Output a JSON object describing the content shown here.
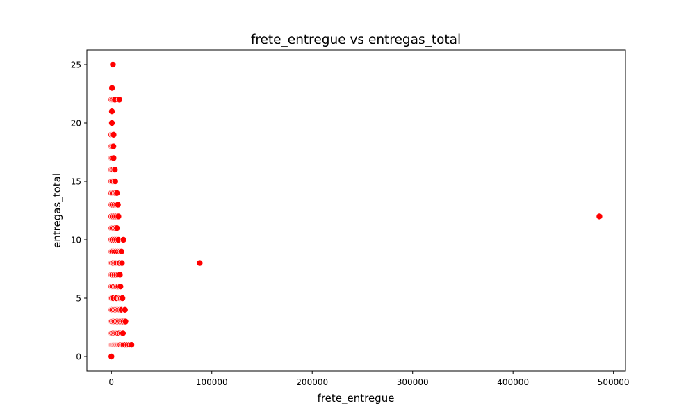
{
  "chart_data": {
    "type": "scatter",
    "title": "frete_entregue vs entregas_total",
    "xlabel": "frete_entregue",
    "ylabel": "entregas_total",
    "xlim": [
      -24400,
      512000
    ],
    "ylim": [
      -1.25,
      26.25
    ],
    "xticks": [
      0,
      100000,
      200000,
      300000,
      400000,
      500000
    ],
    "xtick_labels": [
      "0",
      "100000",
      "200000",
      "300000",
      "400000",
      "500000"
    ],
    "yticks": [
      0,
      5,
      10,
      15,
      20,
      25
    ],
    "ytick_labels": [
      "0",
      "5",
      "10",
      "15",
      "20",
      "25"
    ],
    "grid": false,
    "marker_color": "#ff0000",
    "marker_edge_color": "#ffffff",
    "points": [
      {
        "x": 0,
        "y": 0
      },
      {
        "x": 0,
        "y": 1
      },
      {
        "x": 600,
        "y": 1
      },
      {
        "x": 1400,
        "y": 1
      },
      {
        "x": 2200,
        "y": 1
      },
      {
        "x": 3100,
        "y": 1
      },
      {
        "x": 4000,
        "y": 1
      },
      {
        "x": 5000,
        "y": 1
      },
      {
        "x": 6000,
        "y": 1
      },
      {
        "x": 7000,
        "y": 1
      },
      {
        "x": 8000,
        "y": 1
      },
      {
        "x": 9000,
        "y": 1
      },
      {
        "x": 10500,
        "y": 1
      },
      {
        "x": 12000,
        "y": 1
      },
      {
        "x": 13500,
        "y": 1
      },
      {
        "x": 16000,
        "y": 1
      },
      {
        "x": 18000,
        "y": 1
      },
      {
        "x": 20000,
        "y": 1
      },
      {
        "x": 0,
        "y": 2
      },
      {
        "x": 800,
        "y": 2
      },
      {
        "x": 2000,
        "y": 2
      },
      {
        "x": 3500,
        "y": 2
      },
      {
        "x": 5000,
        "y": 2
      },
      {
        "x": 6500,
        "y": 2
      },
      {
        "x": 8000,
        "y": 2
      },
      {
        "x": 10000,
        "y": 2
      },
      {
        "x": 11500,
        "y": 2
      },
      {
        "x": 0,
        "y": 3
      },
      {
        "x": 700,
        "y": 3
      },
      {
        "x": 1800,
        "y": 3
      },
      {
        "x": 3000,
        "y": 3
      },
      {
        "x": 4500,
        "y": 3
      },
      {
        "x": 6000,
        "y": 3
      },
      {
        "x": 7500,
        "y": 3
      },
      {
        "x": 9000,
        "y": 3
      },
      {
        "x": 10500,
        "y": 3
      },
      {
        "x": 12000,
        "y": 3
      },
      {
        "x": 14000,
        "y": 3
      },
      {
        "x": 0,
        "y": 4
      },
      {
        "x": 900,
        "y": 4
      },
      {
        "x": 2500,
        "y": 4
      },
      {
        "x": 4000,
        "y": 4
      },
      {
        "x": 5500,
        "y": 4
      },
      {
        "x": 7000,
        "y": 4
      },
      {
        "x": 8500,
        "y": 4
      },
      {
        "x": 10000,
        "y": 4
      },
      {
        "x": 13500,
        "y": 4
      },
      {
        "x": 0,
        "y": 5
      },
      {
        "x": 700,
        "y": 5
      },
      {
        "x": 1800,
        "y": 5
      },
      {
        "x": 5000,
        "y": 5
      },
      {
        "x": 8000,
        "y": 5
      },
      {
        "x": 9500,
        "y": 5
      },
      {
        "x": 11000,
        "y": 5
      },
      {
        "x": 0,
        "y": 6
      },
      {
        "x": 1000,
        "y": 6
      },
      {
        "x": 2500,
        "y": 6
      },
      {
        "x": 4000,
        "y": 6
      },
      {
        "x": 5500,
        "y": 6
      },
      {
        "x": 7000,
        "y": 6
      },
      {
        "x": 9000,
        "y": 6
      },
      {
        "x": 0,
        "y": 7
      },
      {
        "x": 900,
        "y": 7
      },
      {
        "x": 3000,
        "y": 7
      },
      {
        "x": 5000,
        "y": 7
      },
      {
        "x": 7000,
        "y": 7
      },
      {
        "x": 8500,
        "y": 7
      },
      {
        "x": 0,
        "y": 8
      },
      {
        "x": 700,
        "y": 8
      },
      {
        "x": 1800,
        "y": 8
      },
      {
        "x": 3500,
        "y": 8
      },
      {
        "x": 5000,
        "y": 8
      },
      {
        "x": 6500,
        "y": 8
      },
      {
        "x": 8000,
        "y": 8
      },
      {
        "x": 10500,
        "y": 8
      },
      {
        "x": 88000,
        "y": 8
      },
      {
        "x": 0,
        "y": 9
      },
      {
        "x": 900,
        "y": 9
      },
      {
        "x": 2800,
        "y": 9
      },
      {
        "x": 4500,
        "y": 9
      },
      {
        "x": 6500,
        "y": 9
      },
      {
        "x": 8500,
        "y": 9
      },
      {
        "x": 10000,
        "y": 9
      },
      {
        "x": 0,
        "y": 10
      },
      {
        "x": 1000,
        "y": 10
      },
      {
        "x": 3000,
        "y": 10
      },
      {
        "x": 5000,
        "y": 10
      },
      {
        "x": 7000,
        "y": 10
      },
      {
        "x": 12000,
        "y": 10
      },
      {
        "x": 0,
        "y": 11
      },
      {
        "x": 1000,
        "y": 11
      },
      {
        "x": 2500,
        "y": 11
      },
      {
        "x": 4000,
        "y": 11
      },
      {
        "x": 5500,
        "y": 11
      },
      {
        "x": 0,
        "y": 12
      },
      {
        "x": 1200,
        "y": 12
      },
      {
        "x": 3000,
        "y": 12
      },
      {
        "x": 5000,
        "y": 12
      },
      {
        "x": 7000,
        "y": 12
      },
      {
        "x": 486000,
        "y": 12
      },
      {
        "x": 0,
        "y": 13
      },
      {
        "x": 1000,
        "y": 13
      },
      {
        "x": 3000,
        "y": 13
      },
      {
        "x": 5000,
        "y": 13
      },
      {
        "x": 6500,
        "y": 13
      },
      {
        "x": 0,
        "y": 14
      },
      {
        "x": 1200,
        "y": 14
      },
      {
        "x": 2500,
        "y": 14
      },
      {
        "x": 4000,
        "y": 14
      },
      {
        "x": 5500,
        "y": 14
      },
      {
        "x": 0,
        "y": 15
      },
      {
        "x": 1000,
        "y": 15
      },
      {
        "x": 2500,
        "y": 15
      },
      {
        "x": 3800,
        "y": 15
      },
      {
        "x": 0,
        "y": 16
      },
      {
        "x": 900,
        "y": 16
      },
      {
        "x": 2000,
        "y": 16
      },
      {
        "x": 3500,
        "y": 16
      },
      {
        "x": 0,
        "y": 17
      },
      {
        "x": 800,
        "y": 17
      },
      {
        "x": 2200,
        "y": 17
      },
      {
        "x": 0,
        "y": 18
      },
      {
        "x": 900,
        "y": 18
      },
      {
        "x": 2000,
        "y": 18
      },
      {
        "x": 0,
        "y": 19
      },
      {
        "x": 1200,
        "y": 19
      },
      {
        "x": 2200,
        "y": 19
      },
      {
        "x": 500,
        "y": 20
      },
      {
        "x": 500,
        "y": 21
      },
      {
        "x": 0,
        "y": 22
      },
      {
        "x": 1000,
        "y": 22
      },
      {
        "x": 2200,
        "y": 22
      },
      {
        "x": 3500,
        "y": 22
      },
      {
        "x": 8000,
        "y": 22
      },
      {
        "x": 600,
        "y": 23
      },
      {
        "x": 1500,
        "y": 25
      }
    ]
  }
}
